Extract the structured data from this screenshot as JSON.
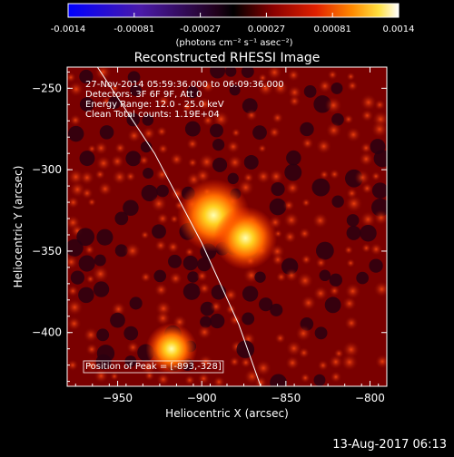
{
  "colorbar": {
    "tick_labels": [
      "-0.0014",
      "-0.00081",
      "-0.00027",
      "0.00027",
      "0.00081",
      "0.0014"
    ],
    "unit_label": "(photons cm⁻² s⁻¹ asec⁻²)",
    "range": [
      -0.0014,
      0.0014
    ]
  },
  "chart_data": {
    "type": "heatmap",
    "title": "Reconstructed RHESSI Image",
    "xlabel": "Heliocentric X (arcsec)",
    "ylabel": "Heliocentric Y (arcsec)",
    "xlim": [
      -980,
      -790
    ],
    "ylim": [
      -433,
      -237
    ],
    "x_ticks": [
      -950,
      -900,
      -850,
      -800
    ],
    "y_ticks": [
      -250,
      -300,
      -350,
      -400
    ],
    "colormap": "black-red-yellow-white (positive), purple-blue (negative)",
    "sources": [
      {
        "x": -893,
        "y": -328,
        "peak": 1.0
      },
      {
        "x": -874,
        "y": -342,
        "peak": 0.8
      },
      {
        "x": -918,
        "y": -410,
        "peak": 0.55
      }
    ],
    "limb_curve": {
      "x": [
        -962,
        -928,
        -900,
        -878,
        -865
      ],
      "y": [
        -237,
        -290,
        -345,
        -395,
        -433
      ]
    },
    "annotations": [
      "27-Nov-2014 05:59:36.000 to 06:09:36.000",
      "Detectors: 3F 6F 9F, Att 0",
      "Energy Range: 12.0 - 25.0 keV",
      "Clean     Total counts: 1.19E+04"
    ],
    "peak_label": "Position of Peak = [-893,-328]"
  },
  "footer_timestamp": "13-Aug-2017 06:13"
}
